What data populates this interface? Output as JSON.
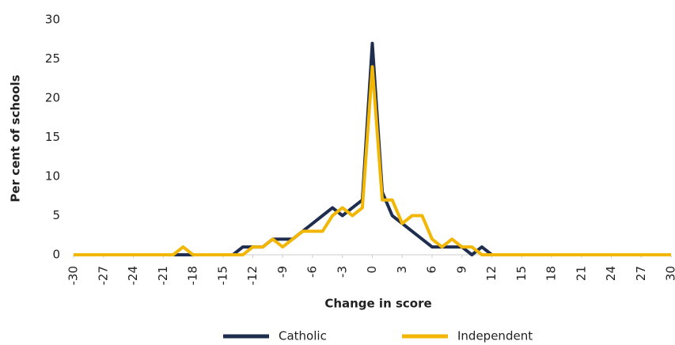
{
  "chart_data": {
    "type": "line",
    "x_label": "Change in score",
    "y_label": "Per cent of schools",
    "x": [
      -30,
      -29,
      -28,
      -27,
      -26,
      -25,
      -24,
      -23,
      -22,
      -21,
      -20,
      -19,
      -18,
      -17,
      -16,
      -15,
      -14,
      -13,
      -12,
      -11,
      -10,
      -9,
      -8,
      -7,
      -6,
      -5,
      -4,
      -3,
      -2,
      -1,
      0,
      1,
      2,
      3,
      4,
      5,
      6,
      7,
      8,
      9,
      10,
      11,
      12,
      13,
      14,
      15,
      16,
      17,
      18,
      19,
      20,
      21,
      22,
      23,
      24,
      25,
      26,
      27,
      28,
      29,
      30
    ],
    "series": [
      {
        "name": "Catholic",
        "color": "#1f2d4e",
        "values": [
          0,
          0,
          0,
          0,
          0,
          0,
          0,
          0,
          0,
          0,
          0,
          0,
          0,
          0,
          0,
          0,
          0,
          1,
          1,
          1,
          2,
          2,
          2,
          3,
          4,
          5,
          6,
          5,
          6,
          7,
          27,
          8,
          5,
          4,
          3,
          2,
          1,
          1,
          1,
          1,
          0,
          1,
          0,
          0,
          0,
          0,
          0,
          0,
          0,
          0,
          0,
          0,
          0,
          0,
          0,
          0,
          0,
          0,
          0,
          0,
          0
        ]
      },
      {
        "name": "Independent",
        "color": "#f2b705",
        "values": [
          0,
          0,
          0,
          0,
          0,
          0,
          0,
          0,
          0,
          0,
          0,
          1,
          0,
          0,
          0,
          0,
          0,
          0,
          1,
          1,
          2,
          1,
          2,
          3,
          3,
          3,
          5,
          6,
          5,
          6,
          24,
          7,
          7,
          4,
          5,
          5,
          2,
          1,
          2,
          1,
          1,
          0,
          0,
          0,
          0,
          0,
          0,
          0,
          0,
          0,
          0,
          0,
          0,
          0,
          0,
          0,
          0,
          0,
          0,
          0,
          0
        ]
      }
    ],
    "xlim": [
      -30,
      30
    ],
    "xticks": [
      -30,
      -27,
      -24,
      -21,
      -18,
      -15,
      -12,
      -9,
      -6,
      -3,
      0,
      3,
      6,
      9,
      12,
      15,
      18,
      21,
      24,
      27,
      30
    ],
    "ylim": [
      0,
      30
    ],
    "yticks": [
      0,
      5,
      10,
      15,
      20,
      25,
      30
    ],
    "grid": false,
    "legend": "bottom"
  }
}
